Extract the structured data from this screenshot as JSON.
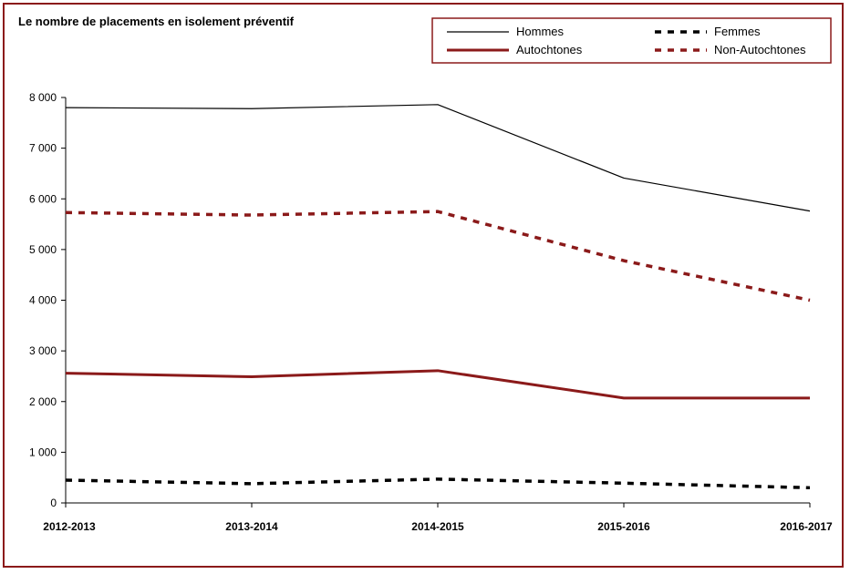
{
  "chart_data": {
    "type": "line",
    "title": "Le nombre de placements en isolement préventif",
    "xlabel": "",
    "ylabel": "",
    "categories": [
      "2012-2013",
      "2013-2014",
      "2014-2015",
      "2015-2016",
      "2016-2017"
    ],
    "ylim": [
      0,
      8000
    ],
    "yticks": [
      0,
      1000,
      2000,
      3000,
      4000,
      5000,
      6000,
      7000,
      8000
    ],
    "ytick_labels": [
      "0",
      "1 000",
      "2 000",
      "3 000",
      "4 000",
      "5 000",
      "6 000",
      "7 000",
      "8 000"
    ],
    "grid": false,
    "legend_position": "top-right",
    "series": [
      {
        "name": "Hommes",
        "values": [
          7800,
          7780,
          7860,
          6410,
          5760
        ],
        "color": "#000000",
        "style": "solid-thin"
      },
      {
        "name": "Femmes",
        "values": [
          450,
          380,
          470,
          390,
          300
        ],
        "color": "#000000",
        "style": "dashed"
      },
      {
        "name": "Autochtones",
        "values": [
          2560,
          2490,
          2610,
          2070,
          2070
        ],
        "color": "#8b1a1a",
        "style": "solid-thick"
      },
      {
        "name": "Non-Autochtones",
        "values": [
          5730,
          5680,
          5750,
          4780,
          4000
        ],
        "color": "#8b1a1a",
        "style": "dashed"
      }
    ]
  }
}
